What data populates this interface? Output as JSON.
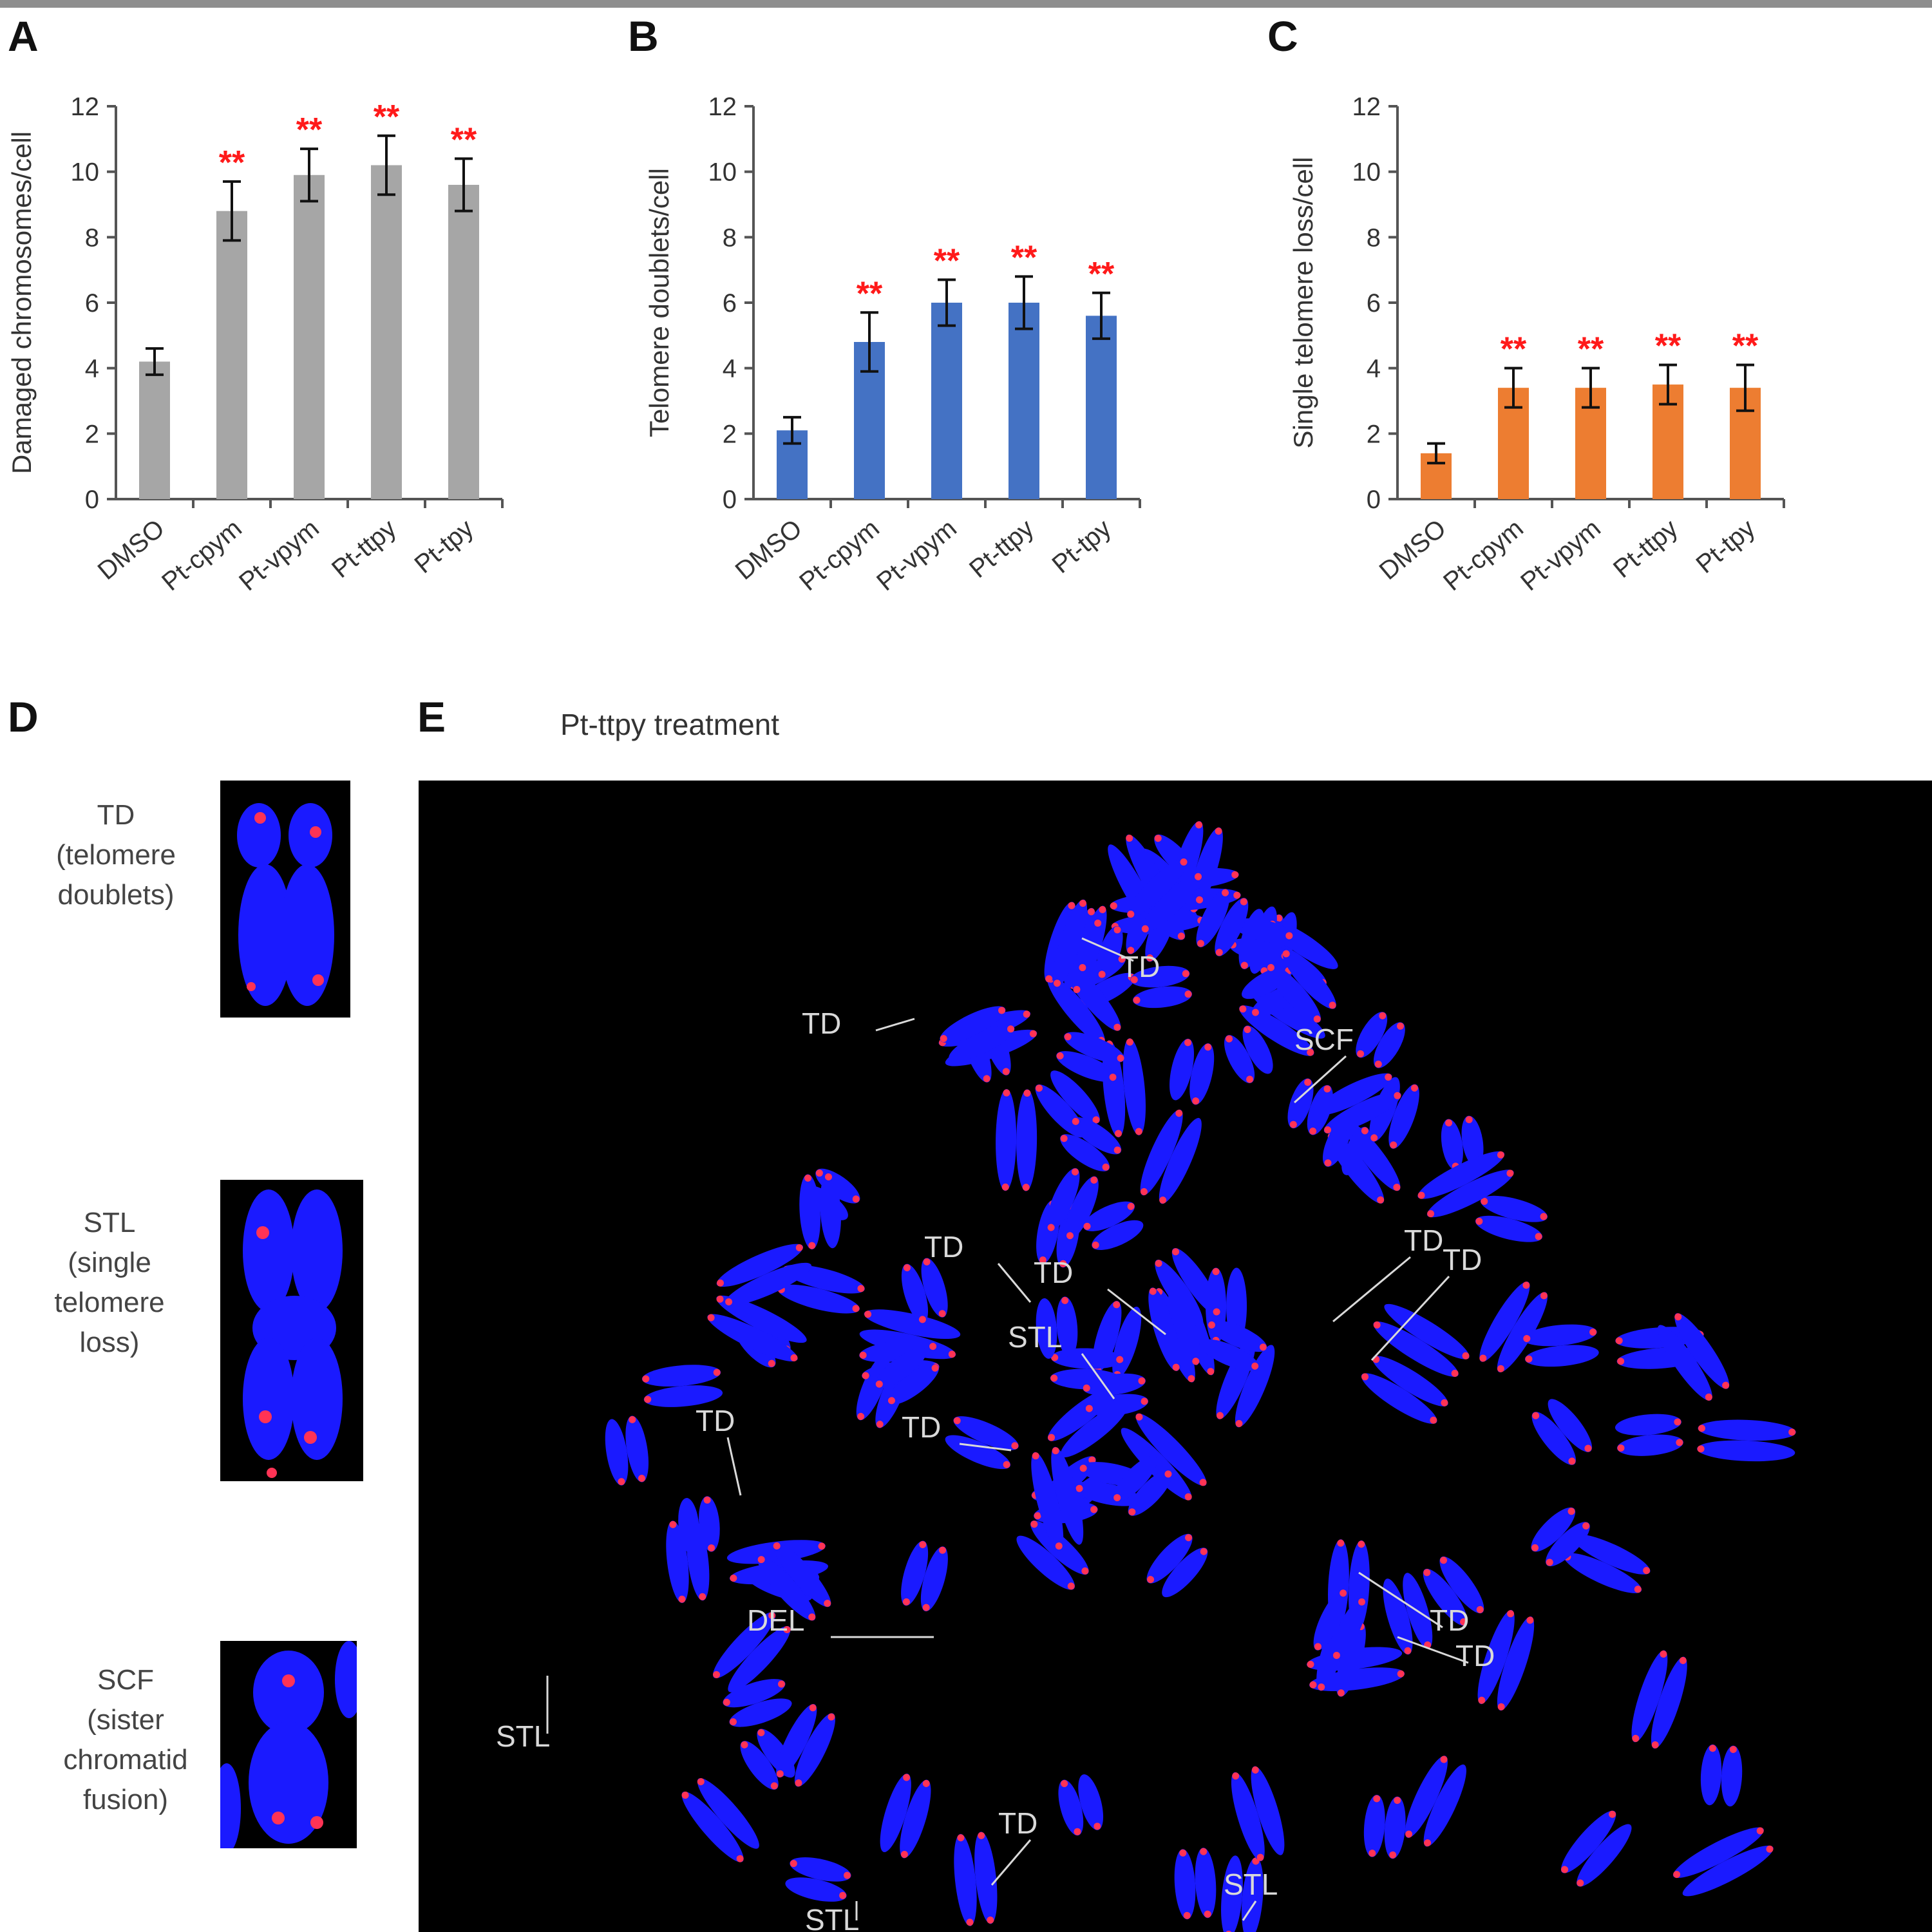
{
  "panels": {
    "a": "A",
    "b": "B",
    "c": "C",
    "d": "D",
    "e": "E"
  },
  "colors": {
    "bar_a": "#a6a6a6",
    "bar_b": "#4472c4",
    "bar_c": "#ed7d31",
    "significance": "#ff1a1a",
    "chromosome": "#1a1aff",
    "telomere": "#ff3355"
  },
  "chart_data": [
    {
      "type": "bar",
      "ylabel": "Damaged chromosomes/cell",
      "categories": [
        "DMSO",
        "Pt-cpym",
        "Pt-vpym",
        "Pt-ttpy",
        "Pt-tpy"
      ],
      "values": [
        4.2,
        8.8,
        9.9,
        10.2,
        9.6
      ],
      "errors": [
        0.4,
        0.9,
        0.8,
        0.9,
        0.8
      ],
      "significance": [
        "",
        "**",
        "**",
        "**",
        "**"
      ],
      "ylim": [
        0,
        12
      ],
      "yticks": [
        0,
        2,
        4,
        6,
        8,
        10,
        12
      ],
      "grid": false
    },
    {
      "type": "bar",
      "ylabel": "Telomere doublets/cell",
      "categories": [
        "DMSO",
        "Pt-cpym",
        "Pt-vpym",
        "Pt-ttpy",
        "Pt-tpy"
      ],
      "values": [
        2.1,
        4.8,
        6.0,
        6.0,
        5.6
      ],
      "errors": [
        0.4,
        0.9,
        0.7,
        0.8,
        0.7
      ],
      "significance": [
        "",
        "**",
        "**",
        "**",
        "**"
      ],
      "ylim": [
        0,
        12
      ],
      "yticks": [
        0,
        2,
        4,
        6,
        8,
        10,
        12
      ],
      "grid": false
    },
    {
      "type": "bar",
      "ylabel": "Single telomere loss/cell",
      "categories": [
        "DMSO",
        "Pt-cpym",
        "Pt-vpym",
        "Pt-ttpy",
        "Pt-tpy"
      ],
      "values": [
        1.4,
        3.4,
        3.4,
        3.5,
        3.4
      ],
      "errors": [
        0.3,
        0.6,
        0.6,
        0.6,
        0.7
      ],
      "significance": [
        "",
        "**",
        "**",
        "**",
        "**"
      ],
      "ylim": [
        0,
        12
      ],
      "yticks": [
        0,
        2,
        4,
        6,
        8,
        10,
        12
      ],
      "grid": false
    }
  ],
  "insets": {
    "td": {
      "line1": "TD",
      "line2": "(telomere",
      "line3": "doublets)"
    },
    "stl": {
      "line1": "STL",
      "line2": "(single",
      "line3": "telomere",
      "line4": "loss)"
    },
    "scf": {
      "line1": "SCF",
      "line2": "(sister",
      "line3": "chromatid",
      "line4": "fusion)"
    }
  },
  "micrograph": {
    "title": "Pt-ttpy treatment",
    "annotations": [
      "TD",
      "TD",
      "SCF",
      "TD",
      "TD",
      "TD",
      "TD",
      "STL",
      "TD",
      "TD",
      "TD",
      "DEL",
      "TD",
      "STL",
      "TD",
      "STL",
      "STL"
    ]
  }
}
